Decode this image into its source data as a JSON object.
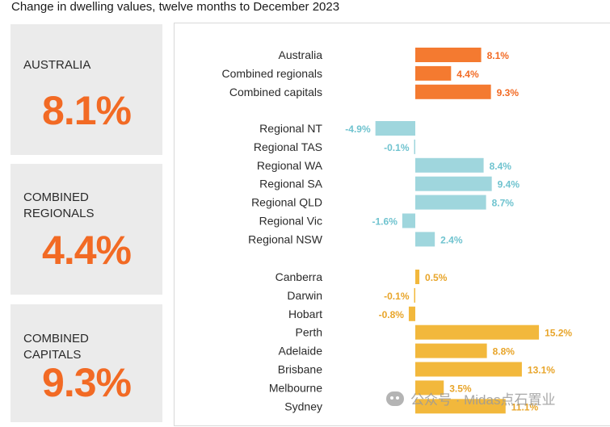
{
  "title": "Change in dwelling values, twelve months to December 2023",
  "kpis": [
    {
      "label": "AUSTRALIA",
      "value": "8.1%"
    },
    {
      "label": "COMBINED\nREGIONALS",
      "value": "4.4%"
    },
    {
      "label": "COMBINED\nCAPITALS",
      "value": "9.3%"
    }
  ],
  "colors": {
    "accent": "#f26a24",
    "orange_bars": "#f47a30",
    "regional_bars": "#9fd6dd",
    "regional_labels": "#6fc3cf",
    "capital_bars": "#f2b83c",
    "capital_labels": "#e8a52a",
    "kpi_bg": "#ebebeb"
  },
  "watermark": "公众号 · Midas点石置业",
  "chart_data": {
    "type": "bar",
    "orientation": "horizontal",
    "title": "Change in dwelling values, twelve months to December 2023",
    "unit": "%",
    "groups": [
      {
        "color_key": "orange",
        "categories": [
          "Australia",
          "Combined regionals",
          "Combined capitals"
        ],
        "values": [
          8.1,
          4.4,
          9.3
        ]
      },
      {
        "color_key": "regional",
        "categories": [
          "Regional NT",
          "Regional TAS",
          "Regional WA",
          "Regional SA",
          "Regional QLD",
          "Regional Vic",
          "Regional NSW"
        ],
        "values": [
          -4.9,
          -0.1,
          8.4,
          9.4,
          8.7,
          -1.6,
          2.4
        ]
      },
      {
        "color_key": "capital",
        "categories": [
          "Canberra",
          "Darwin",
          "Hobart",
          "Perth",
          "Adelaide",
          "Brisbane",
          "Melbourne",
          "Sydney"
        ],
        "values": [
          0.5,
          -0.1,
          -0.8,
          15.2,
          8.8,
          13.1,
          3.5,
          11.1
        ]
      }
    ]
  }
}
